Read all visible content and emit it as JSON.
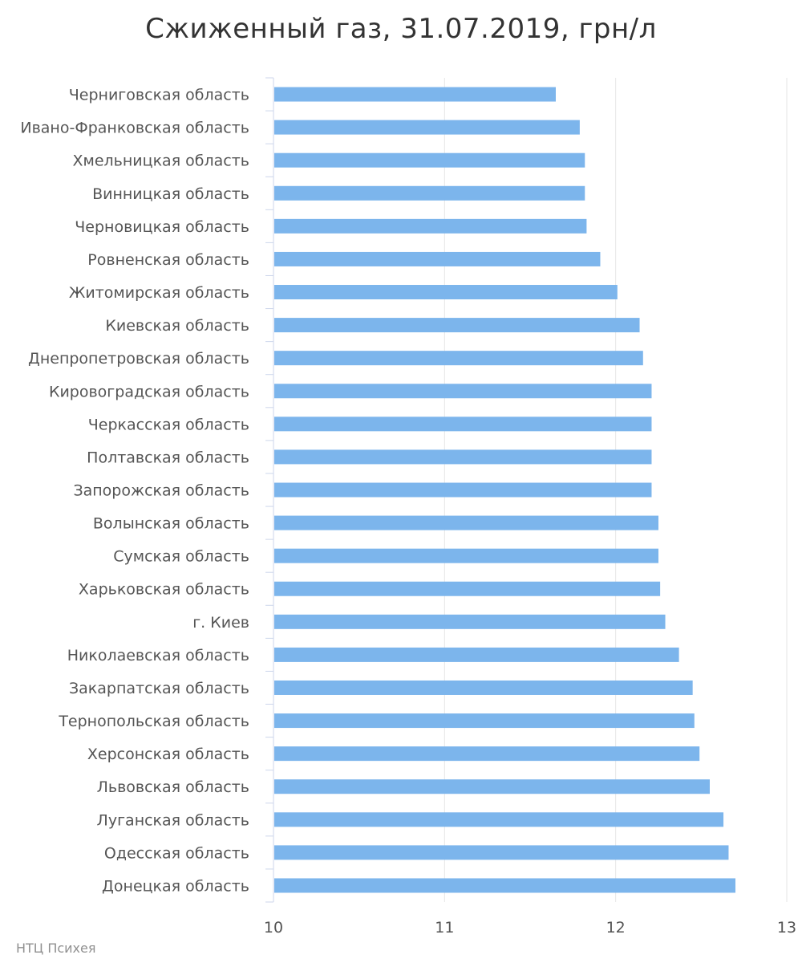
{
  "chart_data": {
    "type": "bar",
    "orientation": "horizontal",
    "title": "Сжиженный газ, 31.07.2019, грн/л",
    "xlabel": "",
    "ylabel": "",
    "categories": [
      "Черниговская область",
      "Ивано-Франковская область",
      "Хмельницкая область",
      "Винницкая область",
      "Черновицкая область",
      "Ровненская область",
      "Житомирская область",
      "Киевская область",
      "Днепропетровская область",
      "Кировоградская область",
      "Черкасская область",
      "Полтавская область",
      "Запорожская область",
      "Волынская область",
      "Сумская область",
      "Харьковская область",
      "г. Киев",
      "Николаевская область",
      "Закарпатская область",
      "Тернопольская область",
      "Херсонская область",
      "Львовская область",
      "Луганская область",
      "Одесская область",
      "Донецкая область"
    ],
    "values": [
      11.65,
      11.79,
      11.82,
      11.82,
      11.83,
      11.91,
      12.01,
      12.14,
      12.16,
      12.21,
      12.21,
      12.21,
      12.21,
      12.25,
      12.25,
      12.26,
      12.29,
      12.37,
      12.45,
      12.46,
      12.49,
      12.55,
      12.63,
      12.66,
      12.7
    ],
    "xlim": [
      10,
      13
    ],
    "ticks": [
      "10",
      "11",
      "12",
      "13"
    ],
    "tick_values": [
      10,
      11,
      12,
      13
    ],
    "grid": true,
    "legend": "none",
    "bar_color": "#7cb5ec"
  },
  "credits": "НТЦ Психея"
}
